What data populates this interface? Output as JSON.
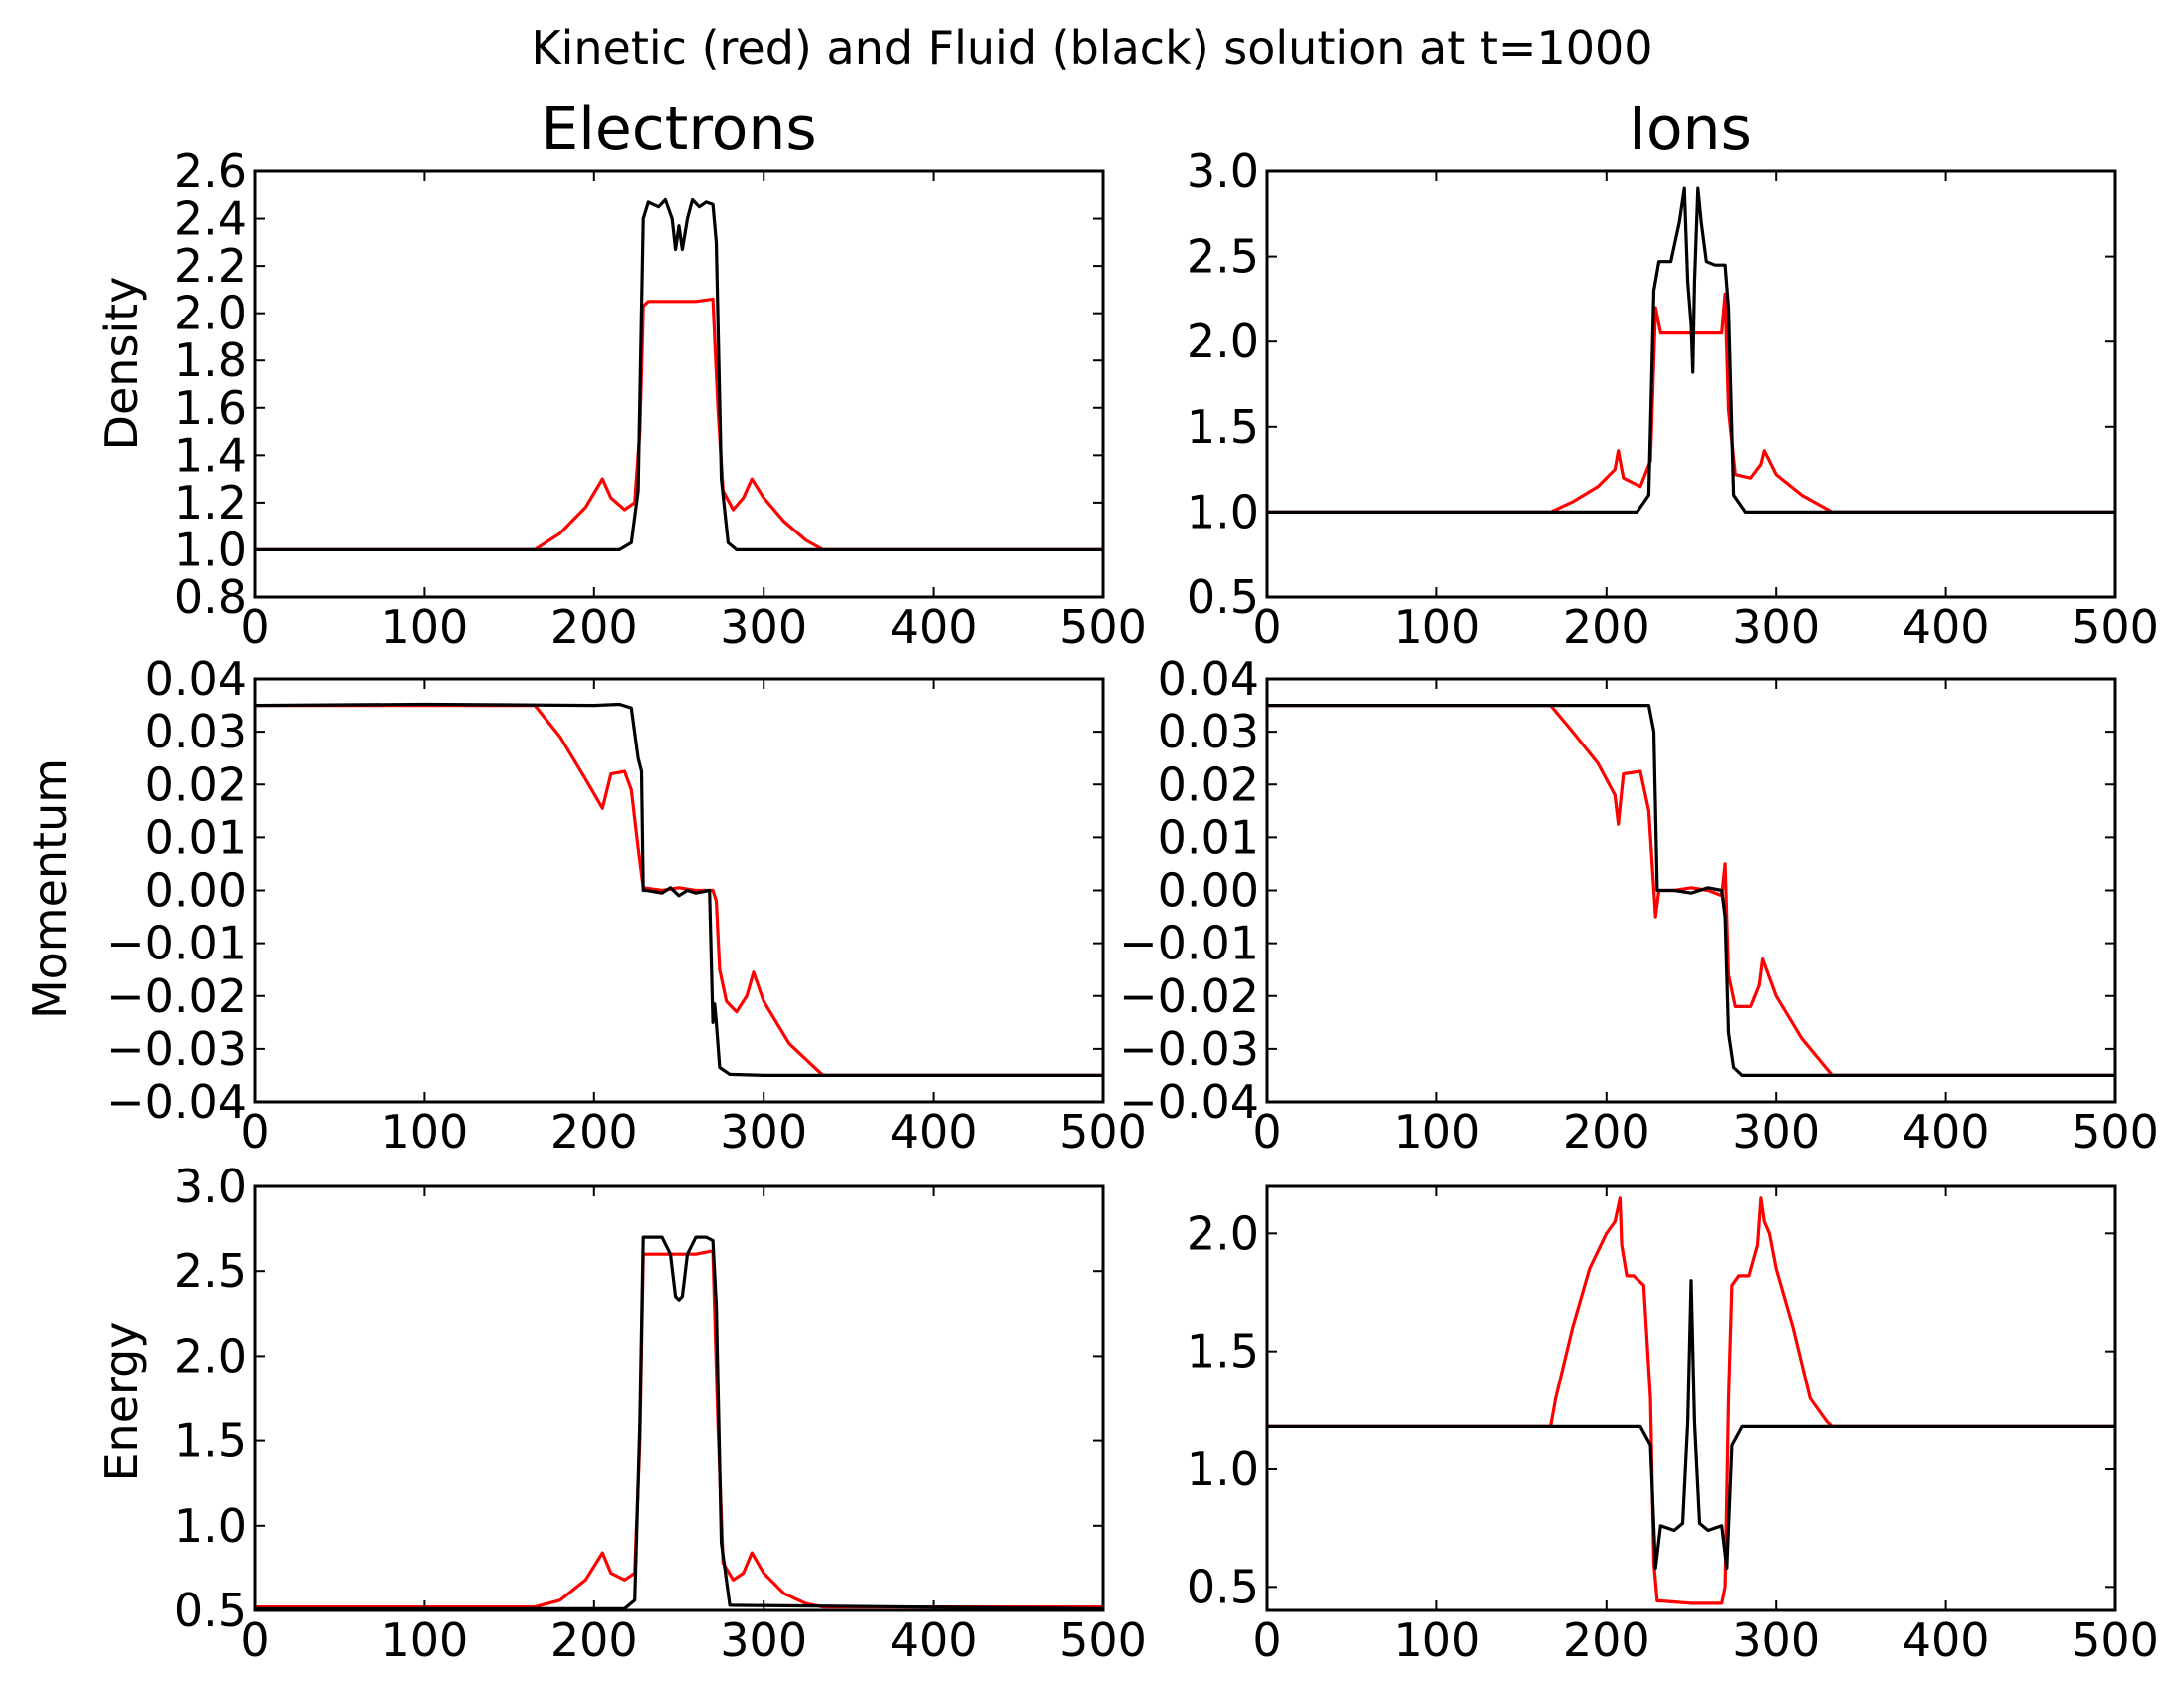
{
  "title": "Kinetic (red) and Fluid (black) solution at t=1000",
  "column_titles": [
    "Electrons",
    "Ions"
  ],
  "row_labels": [
    "Density",
    "Momentum",
    "Energy"
  ],
  "colors": {
    "kinetic": "#ff0000",
    "fluid": "#000000"
  },
  "chart_data": [
    {
      "type": "line",
      "id": "electrons-density",
      "xlim": [
        0,
        500
      ],
      "ylim": [
        0.8,
        2.6
      ],
      "xticks": [
        0,
        100,
        200,
        300,
        400,
        500
      ],
      "xtick_labels": [
        "0",
        "100",
        "200",
        "300",
        "400",
        "500"
      ],
      "yticks": [
        0.8,
        1.0,
        1.2,
        1.4,
        1.6,
        1.8,
        2.0,
        2.2,
        2.4,
        2.6
      ],
      "ytick_labels": [
        "0.8",
        "1.0",
        "1.2",
        "1.4",
        "1.6",
        "1.8",
        "2.0",
        "2.2",
        "2.4",
        "2.6"
      ],
      "series": [
        {
          "color": "#ff0000",
          "x": [
            0,
            165,
            180,
            195,
            205,
            210,
            218,
            224,
            227,
            229,
            232,
            240,
            250,
            260,
            270,
            273,
            276,
            282,
            288,
            293,
            300,
            312,
            325,
            335,
            400,
            500
          ],
          "y": [
            1.0,
            1.0,
            1.07,
            1.18,
            1.3,
            1.22,
            1.17,
            1.2,
            1.5,
            2.03,
            2.05,
            2.05,
            2.05,
            2.05,
            2.06,
            1.6,
            1.25,
            1.17,
            1.22,
            1.3,
            1.22,
            1.12,
            1.04,
            1.0,
            1.0,
            1.0
          ]
        },
        {
          "color": "#000000",
          "x": [
            0,
            215,
            222,
            226,
            229,
            232,
            238,
            242,
            246,
            248,
            250,
            252,
            255,
            258,
            262,
            266,
            270,
            272,
            275,
            279,
            284,
            500
          ],
          "y": [
            1.0,
            1.0,
            1.03,
            1.25,
            2.4,
            2.47,
            2.45,
            2.48,
            2.4,
            2.27,
            2.37,
            2.27,
            2.4,
            2.48,
            2.45,
            2.47,
            2.46,
            2.3,
            1.3,
            1.03,
            1.0,
            1.0
          ]
        }
      ]
    },
    {
      "type": "line",
      "id": "ions-density",
      "xlim": [
        0,
        500
      ],
      "ylim": [
        0.5,
        3.0
      ],
      "xticks": [
        0,
        100,
        200,
        300,
        400,
        500
      ],
      "xtick_labels": [
        "0",
        "100",
        "200",
        "300",
        "400",
        "500"
      ],
      "yticks": [
        0.5,
        1.0,
        1.5,
        2.0,
        2.5,
        3.0
      ],
      "ytick_labels": [
        "0.5",
        "1.0",
        "1.5",
        "2.0",
        "2.5",
        "3.0"
      ],
      "series": [
        {
          "color": "#ff0000",
          "x": [
            0,
            167,
            180,
            195,
            205,
            207,
            210,
            220,
            226,
            229,
            232,
            240,
            250,
            260,
            268,
            270,
            272,
            276,
            285,
            291,
            293,
            300,
            315,
            333,
            400,
            500
          ],
          "y": [
            1.0,
            1.0,
            1.06,
            1.15,
            1.25,
            1.36,
            1.2,
            1.15,
            1.3,
            2.2,
            2.05,
            2.05,
            2.05,
            2.05,
            2.05,
            2.28,
            1.6,
            1.22,
            1.2,
            1.28,
            1.36,
            1.22,
            1.1,
            1.0,
            1.0,
            1.0
          ]
        },
        {
          "color": "#000000",
          "x": [
            0,
            218,
            225,
            228,
            231,
            238,
            243,
            246,
            248,
            250,
            251,
            252,
            254,
            256,
            259,
            264,
            270,
            272,
            275,
            282,
            500
          ],
          "y": [
            1.0,
            1.0,
            1.1,
            2.3,
            2.47,
            2.47,
            2.7,
            2.9,
            2.35,
            2.1,
            1.82,
            2.35,
            2.9,
            2.7,
            2.47,
            2.45,
            2.45,
            2.2,
            1.1,
            1.0,
            1.0
          ]
        }
      ]
    },
    {
      "type": "line",
      "id": "electrons-momentum",
      "xlim": [
        0,
        500
      ],
      "ylim": [
        -0.04,
        0.04
      ],
      "xticks": [
        0,
        100,
        200,
        300,
        400,
        500
      ],
      "xtick_labels": [
        "0",
        "100",
        "200",
        "300",
        "400",
        "500"
      ],
      "yticks": [
        -0.04,
        -0.03,
        -0.02,
        -0.01,
        0.0,
        0.01,
        0.02,
        0.03,
        0.04
      ],
      "ytick_labels": [
        "−0.04",
        "−0.03",
        "−0.02",
        "−0.01",
        "0.00",
        "0.01",
        "0.02",
        "0.03",
        "0.04"
      ],
      "series": [
        {
          "color": "#ff0000",
          "x": [
            0,
            100,
            165,
            180,
            195,
            205,
            210,
            218,
            222,
            226,
            229,
            240,
            250,
            260,
            270,
            272,
            274,
            278,
            284,
            290,
            294,
            300,
            315,
            335,
            400,
            500
          ],
          "y": [
            0.035,
            0.035,
            0.035,
            0.029,
            0.021,
            0.0155,
            0.022,
            0.0225,
            0.019,
            0.008,
            0.0005,
            0.0,
            0.0005,
            0.0,
            0.0,
            -0.002,
            -0.015,
            -0.021,
            -0.023,
            -0.02,
            -0.0155,
            -0.021,
            -0.029,
            -0.035,
            -0.035,
            -0.035
          ]
        },
        {
          "color": "#000000",
          "x": [
            0,
            100,
            200,
            215,
            222,
            226,
            228,
            229,
            231,
            240,
            245,
            250,
            255,
            260,
            268,
            270,
            271,
            272,
            274,
            280,
            300,
            400,
            500
          ],
          "y": [
            0.035,
            0.0352,
            0.035,
            0.0352,
            0.0345,
            0.025,
            0.0225,
            0.0,
            0.0,
            -0.0005,
            0.0005,
            -0.001,
            0.0,
            -0.0005,
            0.0,
            -0.025,
            -0.0215,
            -0.025,
            -0.0335,
            -0.0348,
            -0.035,
            -0.035,
            -0.035
          ]
        }
      ]
    },
    {
      "type": "line",
      "id": "ions-momentum",
      "xlim": [
        0,
        500
      ],
      "ylim": [
        -0.04,
        0.04
      ],
      "xticks": [
        0,
        100,
        200,
        300,
        400,
        500
      ],
      "xtick_labels": [
        "0",
        "100",
        "200",
        "300",
        "400",
        "500"
      ],
      "yticks": [
        -0.04,
        -0.03,
        -0.02,
        -0.01,
        0.0,
        0.01,
        0.02,
        0.03,
        0.04
      ],
      "ytick_labels": [
        "−0.04",
        "−0.03",
        "−0.02",
        "−0.01",
        "0.00",
        "0.01",
        "0.02",
        "0.03",
        "0.04"
      ],
      "series": [
        {
          "color": "#ff0000",
          "x": [
            0,
            167,
            180,
            195,
            205,
            207,
            210,
            220,
            225,
            229,
            231,
            240,
            250,
            260,
            268,
            270,
            272,
            276,
            285,
            290,
            292,
            300,
            315,
            333,
            500
          ],
          "y": [
            0.035,
            0.035,
            0.03,
            0.024,
            0.018,
            0.0125,
            0.022,
            0.0225,
            0.015,
            -0.005,
            0.0,
            0.0,
            0.0005,
            0.0,
            -0.001,
            0.005,
            -0.016,
            -0.022,
            -0.022,
            -0.018,
            -0.013,
            -0.02,
            -0.028,
            -0.035,
            -0.035
          ]
        },
        {
          "color": "#000000",
          "x": [
            0,
            225,
            228,
            230,
            232,
            240,
            250,
            260,
            268,
            270,
            272,
            275,
            280,
            500
          ],
          "y": [
            0.035,
            0.035,
            0.03,
            0.0,
            0.0,
            0.0,
            -0.0005,
            0.0005,
            0.0,
            -0.005,
            -0.027,
            -0.0335,
            -0.035,
            -0.035
          ]
        }
      ]
    },
    {
      "type": "line",
      "id": "electrons-energy",
      "xlim": [
        0,
        500
      ],
      "ylim": [
        0.5,
        3.0
      ],
      "xticks": [
        0,
        100,
        200,
        300,
        400,
        500
      ],
      "xtick_labels": [
        "0",
        "100",
        "200",
        "300",
        "400",
        "500"
      ],
      "yticks": [
        0.5,
        1.0,
        1.5,
        2.0,
        2.5,
        3.0
      ],
      "ytick_labels": [
        "0.5",
        "1.0",
        "1.5",
        "2.0",
        "2.5",
        "3.0"
      ],
      "series": [
        {
          "color": "#ff0000",
          "x": [
            0,
            165,
            180,
            195,
            205,
            210,
            218,
            224,
            227,
            229,
            232,
            240,
            250,
            260,
            270,
            273,
            276,
            282,
            288,
            293,
            300,
            312,
            325,
            335,
            400,
            500
          ],
          "y": [
            0.52,
            0.52,
            0.56,
            0.68,
            0.84,
            0.72,
            0.68,
            0.72,
            1.5,
            2.6,
            2.6,
            2.6,
            2.6,
            2.6,
            2.62,
            1.6,
            0.78,
            0.68,
            0.72,
            0.84,
            0.72,
            0.6,
            0.54,
            0.52,
            0.52,
            0.52
          ]
        },
        {
          "color": "#000000",
          "x": [
            0,
            218,
            224,
            227,
            229,
            232,
            240,
            245,
            248,
            250,
            252,
            255,
            260,
            266,
            270,
            272,
            275,
            280,
            500
          ],
          "y": [
            0.51,
            0.51,
            0.56,
            1.6,
            2.7,
            2.7,
            2.7,
            2.6,
            2.35,
            2.33,
            2.35,
            2.6,
            2.7,
            2.7,
            2.68,
            2.3,
            0.9,
            0.53,
            0.51
          ]
        }
      ]
    },
    {
      "type": "line",
      "id": "ions-energy",
      "xlim": [
        0,
        500
      ],
      "ylim": [
        0.4,
        2.2
      ],
      "xticks": [
        0,
        100,
        200,
        300,
        400,
        500
      ],
      "xtick_labels": [
        "0",
        "100",
        "200",
        "300",
        "400",
        "500"
      ],
      "yticks": [
        0.5,
        1.0,
        1.5,
        2.0
      ],
      "ytick_labels": [
        "0.5",
        "1.0",
        "1.5",
        "2.0"
      ],
      "series": [
        {
          "color": "#ff0000",
          "x": [
            0,
            167,
            170,
            180,
            190,
            200,
            205,
            208,
            209,
            212,
            216,
            222,
            226,
            228,
            230,
            232,
            250,
            268,
            270,
            272,
            274,
            278,
            284,
            289,
            291,
            293,
            296,
            300,
            310,
            320,
            330,
            333,
            500
          ],
          "y": [
            1.18,
            1.18,
            1.3,
            1.6,
            1.85,
            2.0,
            2.05,
            2.15,
            1.95,
            1.82,
            1.82,
            1.78,
            1.3,
            0.6,
            0.44,
            0.44,
            0.43,
            0.43,
            0.5,
            1.3,
            1.78,
            1.82,
            1.82,
            1.95,
            2.15,
            2.05,
            2.0,
            1.85,
            1.6,
            1.3,
            1.2,
            1.18,
            1.18
          ]
        },
        {
          "color": "#000000",
          "x": [
            0,
            220,
            226,
            229,
            232,
            240,
            245,
            248,
            250,
            252,
            255,
            260,
            268,
            271,
            274,
            280,
            500
          ],
          "y": [
            1.18,
            1.18,
            1.1,
            0.58,
            0.76,
            0.74,
            0.77,
            1.2,
            1.8,
            1.2,
            0.77,
            0.74,
            0.76,
            0.58,
            1.1,
            1.18,
            1.18
          ]
        }
      ]
    }
  ]
}
